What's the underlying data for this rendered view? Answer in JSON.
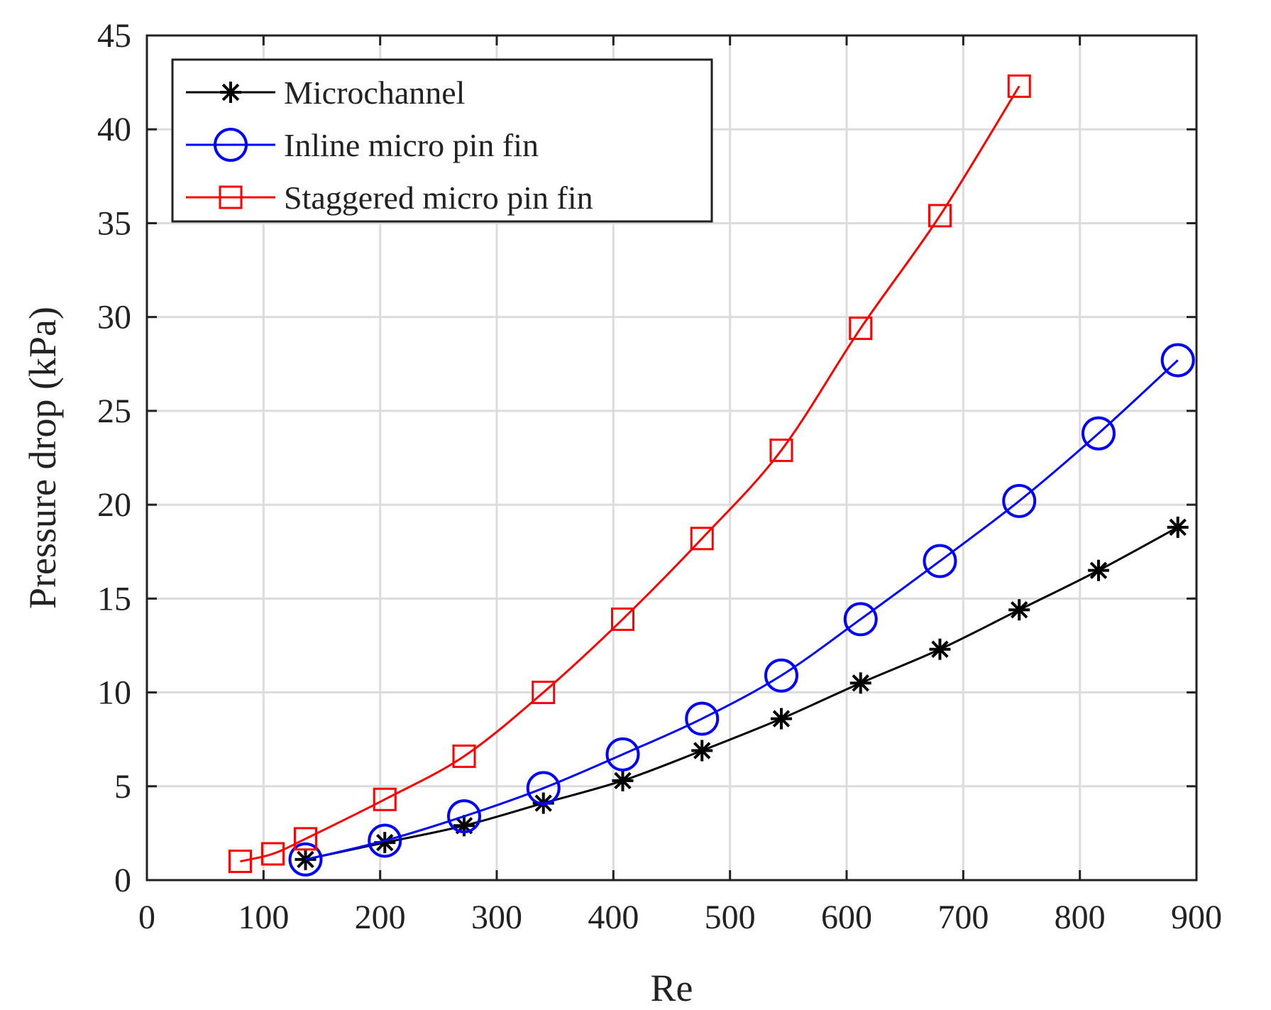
{
  "chart_data": {
    "type": "line",
    "title": "",
    "xlabel": "Re",
    "ylabel": "Pressure drop (kPa)",
    "xlim": [
      0,
      900
    ],
    "ylim": [
      0,
      45
    ],
    "xticks": [
      0,
      100,
      200,
      300,
      400,
      500,
      600,
      700,
      800,
      900
    ],
    "yticks": [
      0,
      5,
      10,
      15,
      20,
      25,
      30,
      35,
      40,
      45
    ],
    "grid": true,
    "legend_position": "top-left",
    "series": [
      {
        "name": "Microchannel",
        "color": "#000000",
        "marker": "asterisk",
        "x": [
          136,
          204,
          272,
          340,
          408,
          476,
          544,
          612,
          680,
          748,
          816,
          884
        ],
        "y": [
          1.1,
          2.0,
          2.9,
          4.1,
          5.3,
          6.9,
          8.6,
          10.5,
          12.3,
          14.4,
          16.5,
          18.8
        ]
      },
      {
        "name": "Inline micro pin fin",
        "color": "#0000ff",
        "marker": "circle",
        "x": [
          136,
          204,
          272,
          340,
          408,
          476,
          544,
          612,
          680,
          748,
          816,
          884
        ],
        "y": [
          1.1,
          2.1,
          3.4,
          4.9,
          6.7,
          8.6,
          10.9,
          13.9,
          17.0,
          20.2,
          23.8,
          27.7
        ]
      },
      {
        "name": "Staggered micro pin fin",
        "color": "#ff0000",
        "marker": "square",
        "x": [
          80,
          108,
          136,
          204,
          272,
          340,
          408,
          476,
          544,
          612,
          680,
          748
        ],
        "y": [
          1.0,
          1.4,
          2.2,
          4.3,
          6.6,
          10.0,
          13.9,
          18.2,
          22.9,
          29.4,
          35.4,
          42.3
        ]
      }
    ]
  }
}
